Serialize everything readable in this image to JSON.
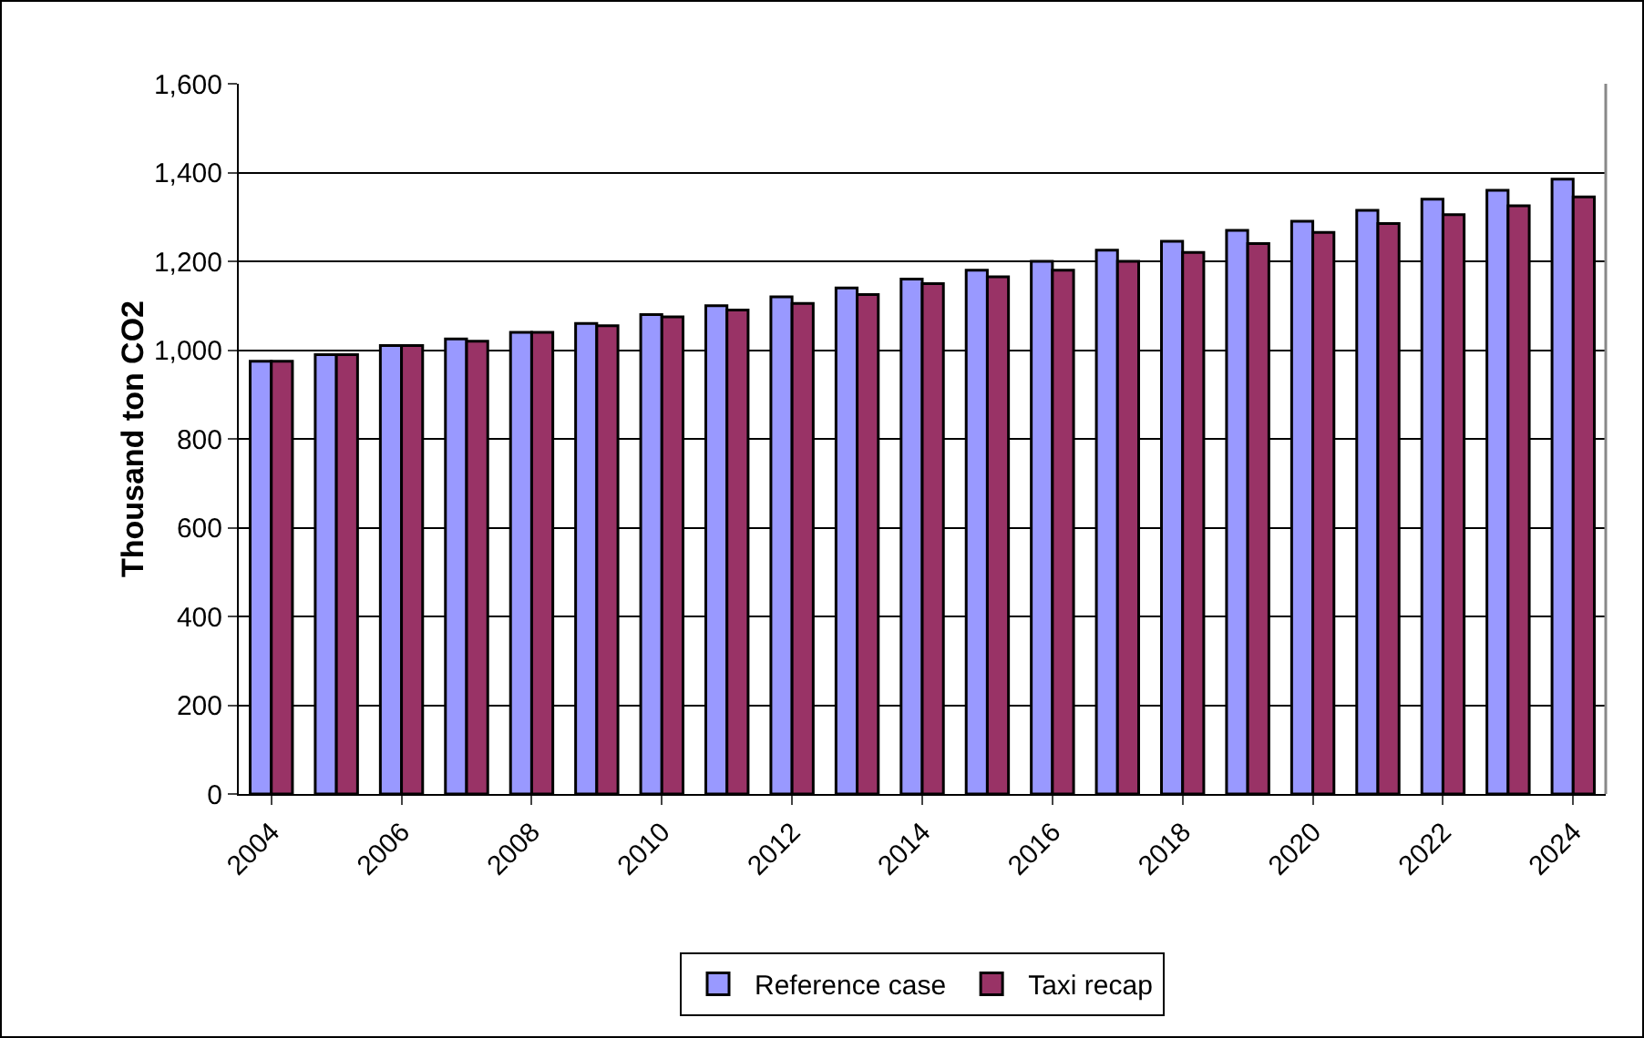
{
  "chart_data": {
    "type": "bar",
    "ylabel": "Thousand ton CO2",
    "categories": [
      "2004",
      null,
      "2006",
      null,
      "2008",
      null,
      "2010",
      null,
      "2012",
      null,
      "2014",
      null,
      "2016",
      null,
      "2018",
      null,
      "2020",
      null,
      "2022",
      null,
      "2024"
    ],
    "series": [
      {
        "name": "Reference case",
        "color": "#9999ff",
        "values": [
          975,
          990,
          1010,
          1025,
          1040,
          1060,
          1080,
          1100,
          1120,
          1140,
          1160,
          1180,
          1200,
          1225,
          1245,
          1270,
          1290,
          1315,
          1340,
          1360,
          1385
        ]
      },
      {
        "name": "Taxi recap",
        "color": "#993366",
        "values": [
          975,
          990,
          1010,
          1020,
          1040,
          1055,
          1075,
          1090,
          1105,
          1125,
          1150,
          1165,
          1180,
          1200,
          1220,
          1240,
          1265,
          1285,
          1305,
          1325,
          1345
        ]
      }
    ],
    "ylim": [
      0,
      1600
    ],
    "yticks": [
      {
        "value": 0,
        "label": "0"
      },
      {
        "value": 200,
        "label": "200"
      },
      {
        "value": 400,
        "label": "400"
      },
      {
        "value": 600,
        "label": "600"
      },
      {
        "value": 800,
        "label": "800"
      },
      {
        "value": 1000,
        "label": "1,000"
      },
      {
        "value": 1200,
        "label": "1,200"
      },
      {
        "value": 1400,
        "label": "1,400"
      },
      {
        "value": 1600,
        "label": "1,600"
      }
    ],
    "grid": "y",
    "legend": "bottom"
  }
}
